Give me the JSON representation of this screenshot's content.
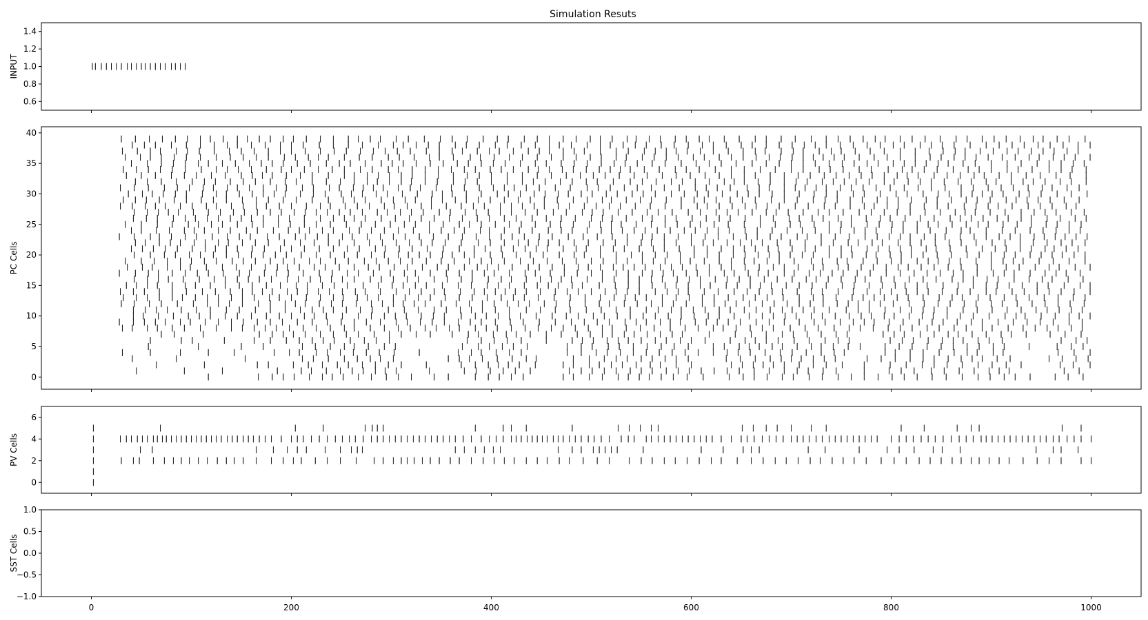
{
  "chart_data": {
    "type": "raster",
    "title": "Simulation Resuts",
    "x_ticks": [
      0,
      200,
      400,
      600,
      800,
      1000
    ],
    "xlim": [
      -50,
      1050
    ],
    "panels": [
      {
        "id": "input",
        "ylabel": "INPUT",
        "ylim": [
          0.5,
          1.5
        ],
        "yticks": [
          0.6,
          0.8,
          1.0,
          1.2,
          1.4
        ],
        "ytick_labels": [
          "0.6",
          "0.8",
          "1.0",
          "1.2",
          "1.4"
        ],
        "rows": [
          {
            "y": 1.0,
            "times": [
              1,
              4,
              10,
              15,
              20,
              25,
              30,
              36,
              40,
              45,
              50,
              54,
              59,
              64,
              69,
              74,
              80,
              84,
              89,
              94
            ]
          }
        ]
      },
      {
        "id": "pc",
        "ylabel": "PC Cells",
        "ylim": [
          -2,
          41
        ],
        "yticks": [
          0,
          5,
          10,
          15,
          20,
          25,
          30,
          35,
          40
        ],
        "ytick_labels": [
          "0",
          "5",
          "10",
          "15",
          "20",
          "25",
          "30",
          "35",
          "40"
        ],
        "raster": {
          "n_rows": 40,
          "x_min": 27,
          "x_max": 1000,
          "mean_isi": 13,
          "quiet_rows": [
            0,
            1,
            2,
            3,
            4,
            5,
            6,
            7
          ],
          "active_bands": [
            [
              200,
              310
            ],
            [
              370,
              440
            ],
            [
              470,
              600
            ],
            [
              630,
              760
            ],
            [
              790,
              920
            ],
            [
              960,
              1000
            ]
          ],
          "sparse_rate": 0.35,
          "seed": 42
        }
      },
      {
        "id": "pv",
        "ylabel": "PV Cells",
        "ylim": [
          -1,
          7
        ],
        "yticks": [
          0,
          2,
          4,
          6
        ],
        "ytick_labels": [
          "0",
          "2",
          "4",
          "6"
        ],
        "rows": [
          {
            "y": 5,
            "times": [
              2,
              69,
              204,
              232,
              274,
              281,
              286,
              292,
              384,
              412,
              420,
              435,
              481,
              527,
              538,
              549,
              560,
              567,
              651,
              662,
              675,
              686,
              700,
              720,
              735,
              810,
              833,
              866,
              880,
              888,
              971,
              990
            ]
          },
          {
            "y": 4,
            "times": [
              2,
              29,
              35,
              40,
              46,
              51,
              56,
              62,
              66,
              71,
              75,
              80,
              85,
              90,
              95,
              100,
              105,
              110,
              115,
              120,
              125,
              130,
              136,
              141,
              146,
              152,
              157,
              162,
              168,
              174,
              180,
              190,
              200,
              206,
              212,
              220,
              228,
              236,
              244,
              251,
              258,
              264,
              272,
              280,
              286,
              292,
              298,
              304,
              310,
              316,
              322,
              328,
              334,
              340,
              346,
              352,
              358,
              364,
              372,
              380,
              390,
              398,
              405,
              412,
              420,
              425,
              430,
              436,
              441,
              446,
              451,
              456,
              462,
              467,
              472,
              478,
              484,
              490,
              497,
              503,
              510,
              518,
              530,
              537,
              543,
              555,
              560,
              567,
              573,
              579,
              585,
              591,
              597,
              603,
              609,
              615,
              621,
              630,
              640,
              650,
              656,
              663,
              671,
              678,
              685,
              692,
              700,
              706,
              712,
              718,
              725,
              731,
              738,
              744,
              750,
              756,
              762,
              768,
              774,
              780,
              786,
              800,
              808,
              815,
              822,
              830,
              837,
              844,
              852,
              860,
              868,
              875,
              882,
              890,
              895,
              901,
              907,
              913,
              919,
              925,
              931,
              937,
              943,
              949,
              955,
              962,
              968,
              976,
              983,
              990,
              1000
            ]
          },
          {
            "y": 3,
            "times": [
              2,
              49,
              61,
              165,
              182,
              196,
              206,
              215,
              234,
              249,
              260,
              266,
              271,
              364,
              373,
              384,
              393,
              402,
              409,
              467,
              481,
              490,
              502,
              508,
              514,
              520,
              526,
              552,
              610,
              632,
              652,
              660,
              668,
              717,
              734,
              768,
              796,
              808,
              823,
              842,
              851,
              869,
              945,
              962,
              970,
              987
            ]
          },
          {
            "y": 2,
            "times": [
              2,
              30,
              42,
              48,
              62,
              73,
              82,
              90,
              98,
              107,
              116,
              126,
              135,
              143,
              152,
              165,
              180,
              192,
              202,
              210,
              224,
              236,
              249,
              265,
              283,
              292,
              302,
              310,
              316,
              323,
              331,
              339,
              348,
              359,
              368,
              380,
              392,
              403,
              413,
              423,
              435,
              446,
              456,
              468,
              478,
              492,
              506,
              518,
              538,
              550,
              561,
              573,
              584,
              596,
              608,
              620,
              630,
              646,
              660,
              672,
              684,
              695,
              707,
              719,
              729,
              741,
              752,
              763,
              775,
              790,
              803,
              815,
              828,
              839,
              850,
              861,
              870,
              880,
              888,
              898,
              908,
              918,
              932,
              946,
              958,
              970,
              990,
              1000
            ]
          },
          {
            "y": 1,
            "times": [
              2
            ]
          },
          {
            "y": 0,
            "times": [
              2
            ]
          }
        ]
      },
      {
        "id": "sst",
        "ylabel": "SST Cells",
        "ylim": [
          -1.0,
          1.0
        ],
        "yticks": [
          -1.0,
          -0.5,
          0.0,
          0.5,
          1.0
        ],
        "ytick_labels": [
          "−1.0",
          "−0.5",
          "0.0",
          "0.5",
          "1.0"
        ],
        "rows": []
      }
    ],
    "colors": {
      "spike": "#000000",
      "frame": "#000000",
      "background": "#ffffff"
    }
  }
}
